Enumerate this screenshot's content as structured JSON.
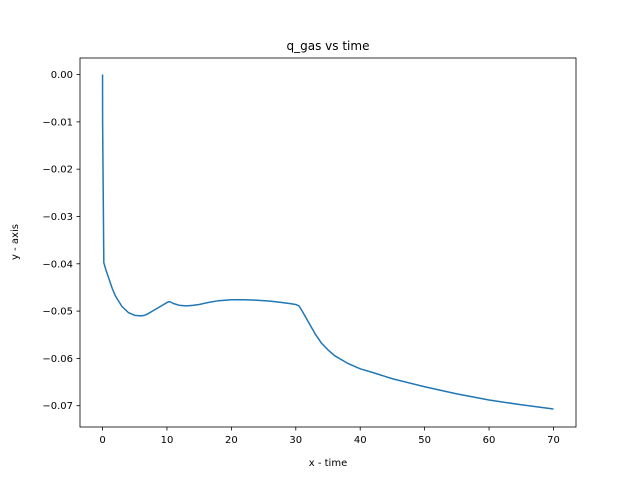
{
  "chart_data": {
    "type": "line",
    "title": "q_gas vs time",
    "xlabel": "x - time",
    "ylabel": "y - axis",
    "xlim": [
      -3.5,
      73.5
    ],
    "ylim": [
      -0.0745,
      0.0035
    ],
    "xticks": [
      {
        "value": 0,
        "label": "0"
      },
      {
        "value": 10,
        "label": "10"
      },
      {
        "value": 20,
        "label": "20"
      },
      {
        "value": 30,
        "label": "30"
      },
      {
        "value": 40,
        "label": "40"
      },
      {
        "value": 50,
        "label": "50"
      },
      {
        "value": 60,
        "label": "60"
      },
      {
        "value": 70,
        "label": "70"
      }
    ],
    "yticks": [
      {
        "value": 0.0,
        "label": "0.00"
      },
      {
        "value": -0.01,
        "label": "−0.01"
      },
      {
        "value": -0.02,
        "label": "−0.02"
      },
      {
        "value": -0.03,
        "label": "−0.03"
      },
      {
        "value": -0.04,
        "label": "−0.04"
      },
      {
        "value": -0.05,
        "label": "−0.05"
      },
      {
        "value": -0.06,
        "label": "−0.06"
      },
      {
        "value": -0.07,
        "label": "−0.07"
      }
    ],
    "grid": false,
    "series": [
      {
        "color": "#1f77b4",
        "x": [
          0,
          0.01,
          0.2,
          0.5,
          1.0,
          1.5,
          2.0,
          3.0,
          4.0,
          5.0,
          6.0,
          6.5,
          7.0,
          8.0,
          9.0,
          10.0,
          10.3,
          10.6,
          11.0,
          12.0,
          13.0,
          14.0,
          15.0,
          16.0,
          18.0,
          20.0,
          22.0,
          24.0,
          26.0,
          28.0,
          29.0,
          30.0,
          30.5,
          31.0,
          32.0,
          33.0,
          34.0,
          35.0,
          36.0,
          38.0,
          40.0,
          42.0,
          45.0,
          50.0,
          55.0,
          60.0,
          65.0,
          70.0
        ],
        "y": [
          0.0,
          -0.01,
          -0.0398,
          -0.0412,
          -0.0432,
          -0.0452,
          -0.0468,
          -0.049,
          -0.0503,
          -0.0509,
          -0.051,
          -0.0509,
          -0.0506,
          -0.0498,
          -0.049,
          -0.0482,
          -0.048,
          -0.0481,
          -0.0484,
          -0.0488,
          -0.0489,
          -0.0488,
          -0.0486,
          -0.0483,
          -0.0478,
          -0.0476,
          -0.0476,
          -0.0477,
          -0.0479,
          -0.0482,
          -0.0484,
          -0.0486,
          -0.0489,
          -0.05,
          -0.0524,
          -0.0548,
          -0.0568,
          -0.0582,
          -0.0594,
          -0.061,
          -0.0622,
          -0.063,
          -0.0643,
          -0.066,
          -0.0675,
          -0.0688,
          -0.0698,
          -0.0707
        ]
      }
    ]
  }
}
